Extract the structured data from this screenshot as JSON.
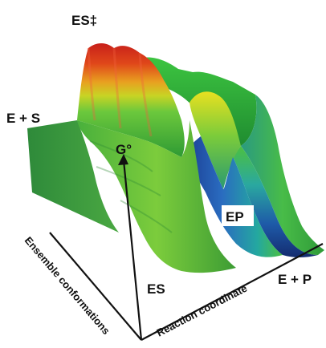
{
  "figure": {
    "labels": {
      "transition_state": "ES‡",
      "reactants": "E + S",
      "free_energy": "G°",
      "intermediate_ep": "EP",
      "bound_state": "ES",
      "products": "E + P"
    },
    "axes": {
      "conformations": "Ensemble conformations",
      "reaction": "Reaction coordinate"
    },
    "colors": {
      "low": "#1a3a8f",
      "mid_low": "#1aa0b8",
      "mid": "#3cc43c",
      "mid_high": "#e8e020",
      "high": "#d81a12"
    }
  }
}
